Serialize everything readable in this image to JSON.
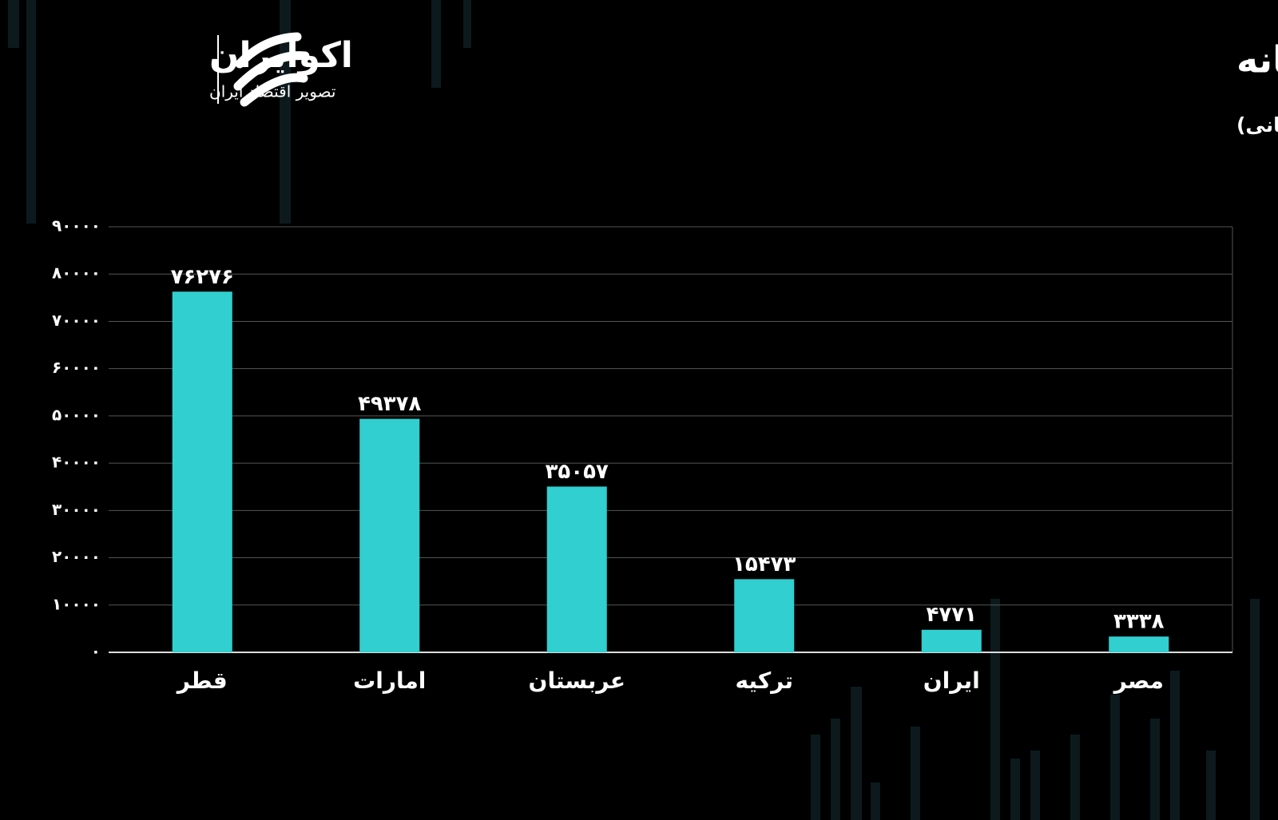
{
  "brand": {
    "name": "اکوایران",
    "tagline": "تصویر اقتصاد ایران"
  },
  "chart_data": {
    "type": "bar",
    "title": "GDP سرانه کشورهای منطقه خاورمیانه",
    "subtitle": "(واحد: دلار- منبع: بانک جهانی)",
    "categories": [
      "قطر",
      "امارات",
      "عربستان",
      "ترکیه",
      "ایران",
      "مصر"
    ],
    "values": [
      76276,
      49378,
      35057,
      15473,
      4771,
      3338
    ],
    "value_labels": [
      "۷۶۲۷۶",
      "۴۹۳۷۸",
      "۳۵۰۵۷",
      "۱۵۴۷۳",
      "۴۷۷۱",
      "۳۳۳۸"
    ],
    "color": "#31cfcf",
    "ylim": [
      0,
      90000
    ],
    "yticks": [
      {
        "value": 0,
        "label": "۰"
      },
      {
        "value": 10000,
        "label": "۱۰۰۰۰"
      },
      {
        "value": 20000,
        "label": "۲۰۰۰۰"
      },
      {
        "value": 30000,
        "label": "۳۰۰۰۰"
      },
      {
        "value": 40000,
        "label": "۴۰۰۰۰"
      },
      {
        "value": 50000,
        "label": "۵۰۰۰۰"
      },
      {
        "value": 60000,
        "label": "۶۰۰۰۰"
      },
      {
        "value": 70000,
        "label": "۷۰۰۰۰"
      },
      {
        "value": 80000,
        "label": "۸۰۰۰۰"
      },
      {
        "value": 90000,
        "label": "۹۰۰۰۰"
      }
    ],
    "grid": true
  }
}
